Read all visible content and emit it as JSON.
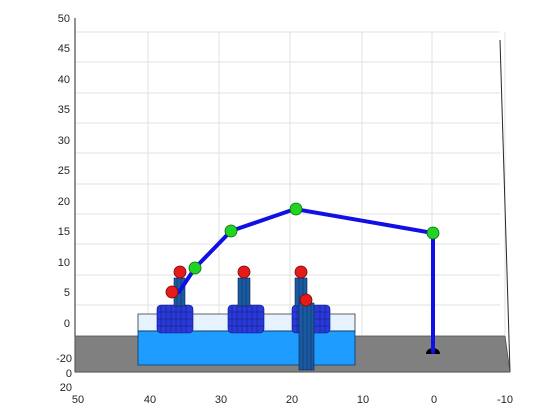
{
  "figure": {
    "z_ticks": [
      "50",
      "45",
      "40",
      "35",
      "30",
      "25",
      "20",
      "15",
      "10",
      "5",
      "0"
    ],
    "y_ticks": [
      "-20",
      "0",
      "20"
    ],
    "x_ticks": [
      "50",
      "40",
      "30",
      "20",
      "10",
      "0",
      "-10"
    ]
  },
  "colors": {
    "floor": "#808080",
    "platform_top": "#e6f3ff",
    "platform_front": "#1e9cff",
    "arm": "#1010e6",
    "joint_green": "#22d422",
    "joint_red": "#e61a1a",
    "base": "#000000"
  },
  "icons": {
    "base": "robot-base-icon",
    "joint": "joint-sphere-icon"
  }
}
